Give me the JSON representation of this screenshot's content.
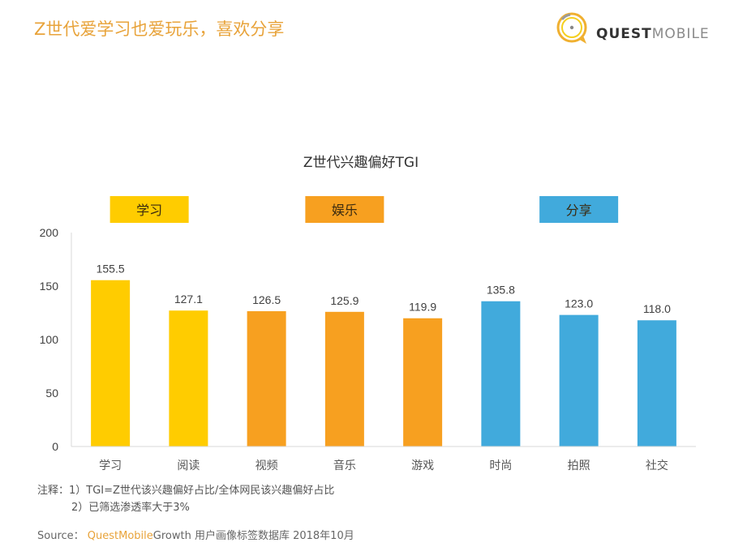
{
  "header": {
    "headline": "Z世代爱学习也爱玩乐，喜欢分享",
    "logo": {
      "icon": "questmobile-logo-icon",
      "quest": "QUEST",
      "mobile": "MOBILE"
    }
  },
  "colors": {
    "headline": "#E8A33A",
    "learning": "#FFCC00",
    "entertainment": "#F7A020",
    "sharing": "#41AADC"
  },
  "chart_data": {
    "type": "bar",
    "title": "Z世代兴趣偏好TGI",
    "xlabel": "",
    "ylabel": "",
    "ylim": [
      0,
      200
    ],
    "yticks": [
      0,
      50,
      100,
      150,
      200
    ],
    "ytick_labels": [
      "0",
      "50",
      "100",
      "150",
      "200"
    ],
    "grid": false,
    "categories": [
      "学习",
      "阅读",
      "视频",
      "音乐",
      "游戏",
      "时尚",
      "拍照",
      "社交"
    ],
    "values": [
      155.5,
      127.1,
      126.5,
      125.9,
      119.9,
      135.8,
      123.0,
      118.0
    ],
    "value_labels": [
      "155.5",
      "127.1",
      "126.5",
      "125.9",
      "119.9",
      "135.8",
      "123.0",
      "118.0"
    ],
    "bar_groups": [
      "learning",
      "learning",
      "entertainment",
      "entertainment",
      "entertainment",
      "sharing",
      "sharing",
      "sharing"
    ],
    "group_labels": [
      {
        "key": "learning",
        "label": "学习"
      },
      {
        "key": "entertainment",
        "label": "娱乐"
      },
      {
        "key": "sharing",
        "label": "分享"
      }
    ]
  },
  "notes": {
    "prefix": "注释：",
    "items": [
      "1）TGI=Z世代该兴趣偏好占比/全体网民该兴趣偏好占比",
      "2）已筛选渗透率大于3%"
    ]
  },
  "source": {
    "label": "Source：",
    "brand": "QuestMobile",
    "rest": "Growth 用户画像标签数据库 2018年10月"
  }
}
